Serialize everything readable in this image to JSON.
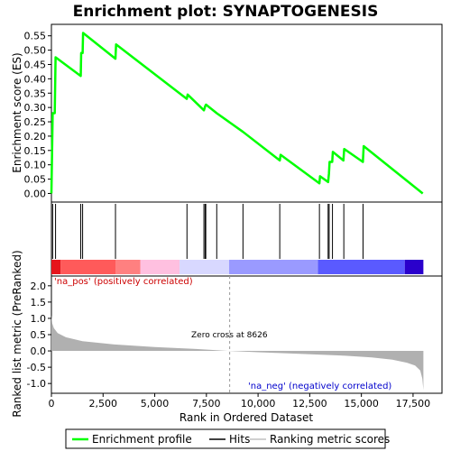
{
  "chart_data": [
    {
      "type": "line",
      "title": "Enrichment plot: SYNAPTOGENESIS",
      "ylabel": "Enrichment score (ES)",
      "series": [
        {
          "name": "Enrichment profile",
          "color": "#00ff00",
          "points": [
            [
              0,
              0.0
            ],
            [
              60,
              0.28
            ],
            [
              160,
              0.28
            ],
            [
              200,
              0.475
            ],
            [
              1420,
              0.41
            ],
            [
              1440,
              0.49
            ],
            [
              1510,
              0.49
            ],
            [
              1530,
              0.56
            ],
            [
              3100,
              0.47
            ],
            [
              3130,
              0.52
            ],
            [
              6550,
              0.33
            ],
            [
              6590,
              0.345
            ],
            [
              7380,
              0.29
            ],
            [
              7440,
              0.305
            ],
            [
              7480,
              0.31
            ],
            [
              8000,
              0.28
            ],
            [
              9270,
              0.215
            ],
            [
              11050,
              0.115
            ],
            [
              11090,
              0.135
            ],
            [
              12970,
              0.035
            ],
            [
              13000,
              0.06
            ],
            [
              13390,
              0.04
            ],
            [
              13430,
              0.07
            ],
            [
              13460,
              0.11
            ],
            [
              13590,
              0.11
            ],
            [
              13620,
              0.145
            ],
            [
              14130,
              0.115
            ],
            [
              14170,
              0.155
            ],
            [
              15070,
              0.11
            ],
            [
              15110,
              0.165
            ],
            [
              17970,
              0.0
            ]
          ]
        }
      ],
      "ylim": [
        -0.03,
        0.59
      ],
      "yticks": [
        "0.00",
        "0.05",
        "0.10",
        "0.15",
        "0.20",
        "0.25",
        "0.30",
        "0.35",
        "0.40",
        "0.45",
        "0.50",
        "0.55"
      ],
      "ytick_values": [
        0.0,
        0.05,
        0.1,
        0.15,
        0.2,
        0.25,
        0.3,
        0.35,
        0.4,
        0.45,
        0.5,
        0.55
      ],
      "grid": false
    },
    {
      "type": "hits",
      "hit_positions": [
        60,
        200,
        1420,
        1510,
        3100,
        6560,
        7380,
        7440,
        7470,
        8000,
        9270,
        11050,
        12970,
        13390,
        13440,
        13600,
        14150,
        15080
      ],
      "heatmap_colors": [
        "#e6151c",
        "#ff5a5a",
        "#ff8080",
        "#ffc0e0",
        "#d8d8ff",
        "#9a9aff",
        "#5a5aff",
        "#2a00cc"
      ],
      "heatmap_stops": [
        0,
        450,
        3100,
        4300,
        6200,
        8600,
        12900,
        17100,
        18000
      ]
    },
    {
      "type": "area",
      "ylabel": "Ranked list metric (PreRanked)",
      "xlabel": "Rank in Ordered Dataset",
      "xlim": [
        0,
        18900
      ],
      "ylim": [
        -1.3,
        2.3
      ],
      "xticks": [
        "0",
        "2,500",
        "5,000",
        "7,500",
        "10,000",
        "12,500",
        "15,000",
        "17,500"
      ],
      "xtick_values": [
        0,
        2500,
        5000,
        7500,
        10000,
        12500,
        15000,
        17500
      ],
      "yticks": [
        "-1.0",
        "-0.5",
        "0.0",
        "0.5",
        "1.0",
        "1.5",
        "2.0"
      ],
      "ytick_values": [
        -1.0,
        -0.5,
        0.0,
        0.5,
        1.0,
        1.5,
        2.0
      ],
      "metric_curve": [
        [
          0,
          1.1
        ],
        [
          40,
          0.85
        ],
        [
          120,
          0.7
        ],
        [
          300,
          0.55
        ],
        [
          700,
          0.42
        ],
        [
          1500,
          0.3
        ],
        [
          3000,
          0.2
        ],
        [
          5000,
          0.12
        ],
        [
          7000,
          0.06
        ],
        [
          8626,
          0.0
        ],
        [
          10000,
          -0.04
        ],
        [
          12000,
          -0.09
        ],
        [
          14000,
          -0.14
        ],
        [
          15500,
          -0.2
        ],
        [
          16500,
          -0.27
        ],
        [
          17200,
          -0.36
        ],
        [
          17600,
          -0.45
        ],
        [
          17850,
          -0.6
        ],
        [
          17950,
          -0.85
        ],
        [
          18000,
          -1.2
        ]
      ],
      "zero_cross_rank": 8626,
      "zero_cross_label": "Zero cross at 8626",
      "pos_label": "'na_pos' (positively correlated)",
      "neg_label": "'na_neg' (negatively correlated)",
      "pos_color": "#cc0000",
      "neg_color": "#0000cc",
      "fill_color": "#b0b0b0"
    }
  ],
  "legend": {
    "items": [
      {
        "label": "Enrichment profile",
        "color": "#00ff00"
      },
      {
        "label": "Hits",
        "color": "#000000"
      },
      {
        "label": "Ranking metric scores",
        "color": "#c0c0c0"
      }
    ]
  }
}
